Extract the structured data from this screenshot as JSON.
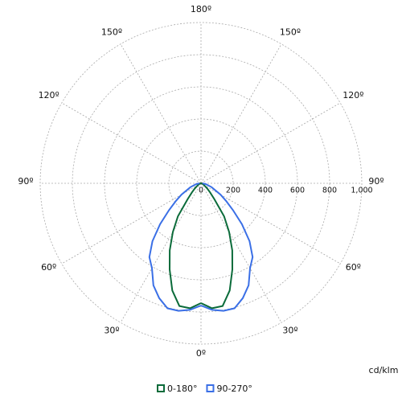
{
  "chart_data": {
    "type": "polar",
    "x": [
      0,
      5,
      10,
      15,
      20,
      25,
      30,
      35,
      40,
      45,
      50,
      55,
      60,
      70,
      80,
      90
    ],
    "series": [
      {
        "name": "0-180°",
        "color": "#0b6b3a",
        "values": [
          745,
          780,
          775,
          690,
          570,
          460,
          350,
          250,
          130,
          80,
          50,
          30,
          20,
          10,
          5,
          0
        ]
      },
      {
        "name": "90-270°",
        "color": "#3a6fe6",
        "values": [
          760,
          790,
          805,
          805,
          760,
          700,
          610,
          560,
          470,
          360,
          260,
          190,
          140,
          70,
          30,
          10
        ]
      }
    ],
    "rlim": [
      0,
      1000
    ],
    "rticks": [
      0,
      200,
      400,
      600,
      800,
      {
        "value": 1000,
        "label": "1,000"
      }
    ],
    "thetaticks": [
      {
        "value": 0,
        "label": "0º"
      },
      {
        "value": 30,
        "label": "30º"
      },
      {
        "value": 60,
        "label": "60º"
      },
      {
        "value": 90,
        "label": "90º"
      },
      {
        "value": 120,
        "label": "120º"
      },
      {
        "value": 150,
        "label": "150º"
      },
      {
        "value": 180,
        "label": "180º"
      }
    ],
    "unit_label": "cd/klm",
    "grid": true
  }
}
